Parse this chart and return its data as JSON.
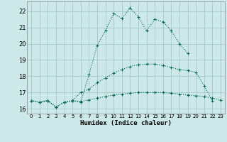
{
  "xlabel": "Humidex (Indice chaleur)",
  "xlim": [
    -0.5,
    23.5
  ],
  "ylim": [
    15.7,
    22.6
  ],
  "yticks": [
    16,
    17,
    18,
    19,
    20,
    21,
    22
  ],
  "xticks": [
    0,
    1,
    2,
    3,
    4,
    5,
    6,
    7,
    8,
    9,
    10,
    11,
    12,
    13,
    14,
    15,
    16,
    17,
    18,
    19,
    20,
    21,
    22,
    23
  ],
  "bg_color": "#cce8e8",
  "grid_color": "#aacccc",
  "line_color": "#006655",
  "line1_x": [
    0,
    1,
    2,
    3,
    4,
    5,
    6,
    7,
    8,
    9,
    10,
    11,
    12,
    13,
    14,
    15,
    16,
    17,
    18,
    19
  ],
  "line1_y": [
    16.5,
    16.4,
    16.5,
    16.1,
    16.4,
    16.5,
    16.4,
    18.1,
    19.9,
    20.8,
    21.85,
    21.55,
    22.2,
    21.65,
    20.8,
    21.5,
    21.35,
    20.8,
    20.0,
    19.4
  ],
  "line2_x": [
    0,
    1,
    2,
    3,
    4,
    5,
    6,
    7,
    8,
    9,
    10,
    11,
    12,
    13,
    14,
    15,
    16,
    17,
    18,
    19,
    20,
    21,
    22
  ],
  "line2_y": [
    16.5,
    16.4,
    16.5,
    16.1,
    16.4,
    16.5,
    17.0,
    17.2,
    17.6,
    17.9,
    18.2,
    18.4,
    18.6,
    18.7,
    18.75,
    18.75,
    18.65,
    18.55,
    18.4,
    18.35,
    18.25,
    17.4,
    16.5
  ],
  "line3_x": [
    0,
    1,
    2,
    3,
    4,
    5,
    6,
    7,
    8,
    9,
    10,
    11,
    12,
    13,
    14,
    15,
    16,
    17,
    18,
    19,
    20,
    21,
    22,
    23
  ],
  "line3_y": [
    16.5,
    16.4,
    16.5,
    16.1,
    16.4,
    16.5,
    16.45,
    16.55,
    16.65,
    16.75,
    16.85,
    16.9,
    16.95,
    17.0,
    17.0,
    17.0,
    17.0,
    16.95,
    16.9,
    16.85,
    16.8,
    16.75,
    16.65,
    16.55
  ]
}
